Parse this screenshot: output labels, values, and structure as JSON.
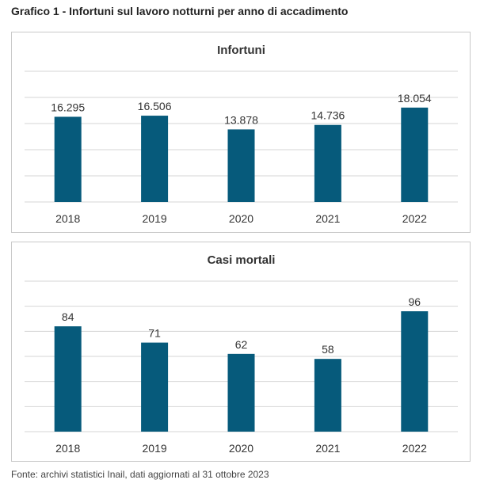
{
  "figure": {
    "title": "Grafico 1 - Infortuni sul lavoro notturni per anno di accadimento",
    "source": "Fonte: archivi statistici Inail, dati aggiornati al 31 ottobre 2023"
  },
  "colors": {
    "bar": "#065a7b",
    "grid": "#d6d6d6",
    "text": "#333333"
  },
  "chart_data": [
    {
      "type": "bar",
      "title": "Infortuni",
      "categories": [
        "2018",
        "2019",
        "2020",
        "2021",
        "2022"
      ],
      "values": [
        16295,
        16506,
        13878,
        14736,
        18054
      ],
      "value_labels": [
        "16.295",
        "16.506",
        "13.878",
        "14.736",
        "18.054"
      ],
      "ylim": [
        0,
        25000
      ],
      "grid": true,
      "gridlines": [
        0,
        5000,
        10000,
        15000,
        20000,
        25000
      ],
      "xlabel": "",
      "ylabel": ""
    },
    {
      "type": "bar",
      "title": "Casi mortali",
      "categories": [
        "2018",
        "2019",
        "2020",
        "2021",
        "2022"
      ],
      "values": [
        84,
        71,
        62,
        58,
        96
      ],
      "value_labels": [
        "84",
        "71",
        "62",
        "58",
        "96"
      ],
      "ylim": [
        0,
        120
      ],
      "grid": true,
      "gridlines": [
        0,
        20,
        40,
        60,
        80,
        100,
        120
      ],
      "xlabel": "",
      "ylabel": ""
    }
  ]
}
